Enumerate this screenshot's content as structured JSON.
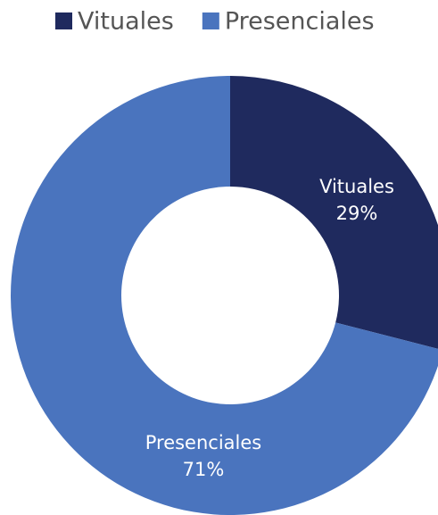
{
  "chart_data": {
    "type": "pie",
    "donut": true,
    "categories": [
      "Vituales",
      "Presenciales"
    ],
    "values": [
      29,
      71
    ],
    "value_labels": [
      "29%",
      "71%"
    ],
    "colors": [
      "#1f2a5e",
      "#4a74be"
    ],
    "legend": "top"
  }
}
